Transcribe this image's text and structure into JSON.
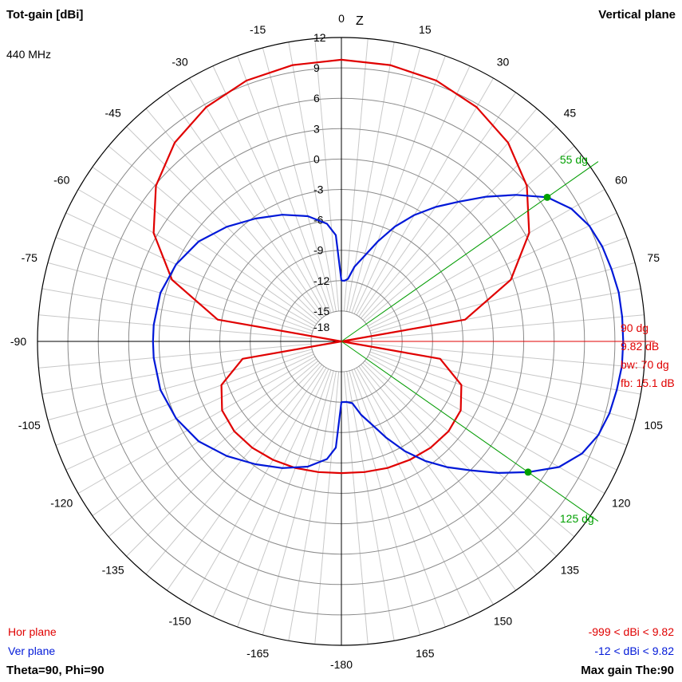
{
  "header": {
    "title_left": "Tot-gain [dBi]",
    "title_right": "Vertical plane",
    "frequency": "440 MHz",
    "z_axis_label": "Z"
  },
  "footer": {
    "hor_plane_label": "Hor plane",
    "ver_plane_label": "Ver plane",
    "theta_phi": "Theta=90, Phi=90",
    "hor_range": "-999 < dBi < 9.82",
    "ver_range": "-12 < dBi < 9.82",
    "max_gain": "Max gain The:90"
  },
  "markers": {
    "max_direction": "90 dg",
    "max_gain": "9.82 dB",
    "beamwidth": "bw: 70 dg",
    "front_back": "fb: 15.1 dB",
    "upper_half_power": "55 dg",
    "lower_half_power": "125 dg"
  },
  "colors": {
    "hor": "#e00000",
    "ver": "#0018d8",
    "marker": "#00a000",
    "grid": "#c8c8c8",
    "axis": "#000000"
  },
  "chart_data": {
    "type": "polar",
    "title": "Tot-gain [dBi]",
    "plane": "Vertical plane",
    "frequency": "440 MHz",
    "r_range": [
      -18,
      12
    ],
    "r_ticks": [
      "12",
      "9",
      "6",
      "3",
      "0",
      "-3",
      "-6",
      "-9",
      "-12",
      "-15",
      "-18"
    ],
    "angle_ticks": [
      {
        "angle": 0,
        "label": "0"
      },
      {
        "angle": 15,
        "label": "15"
      },
      {
        "angle": 30,
        "label": "30"
      },
      {
        "angle": 45,
        "label": "45"
      },
      {
        "angle": 60,
        "label": "60"
      },
      {
        "angle": 75,
        "label": "75"
      },
      {
        "angle": 105,
        "label": "105"
      },
      {
        "angle": 120,
        "label": "120"
      },
      {
        "angle": 135,
        "label": "135"
      },
      {
        "angle": 150,
        "label": "150"
      },
      {
        "angle": 165,
        "label": "165"
      },
      {
        "angle": 180,
        "label": "-180"
      },
      {
        "angle": -165,
        "label": "-165"
      },
      {
        "angle": -150,
        "label": "-150"
      },
      {
        "angle": -135,
        "label": "-135"
      },
      {
        "angle": -120,
        "label": "-120"
      },
      {
        "angle": -105,
        "label": "-105"
      },
      {
        "angle": -90,
        "label": "-90"
      },
      {
        "angle": -75,
        "label": "-75"
      },
      {
        "angle": -60,
        "label": "-60"
      },
      {
        "angle": -45,
        "label": "-45"
      },
      {
        "angle": -30,
        "label": "-30"
      },
      {
        "angle": -15,
        "label": "-15"
      }
    ],
    "half_power_angles": [
      55,
      125
    ],
    "series": [
      {
        "name": "Hor plane",
        "color": "#e00000",
        "points": [
          [
            0,
            9.8
          ],
          [
            10,
            9.7
          ],
          [
            20,
            9.4
          ],
          [
            30,
            8.7
          ],
          [
            40,
            7.6
          ],
          [
            50,
            5.9
          ],
          [
            60,
            3.4
          ],
          [
            70,
            -0.2
          ],
          [
            80,
            -5.6
          ],
          [
            90,
            -18
          ],
          [
            100,
            -8.1
          ],
          [
            110,
            -5.4
          ],
          [
            120,
            -4.4
          ],
          [
            130,
            -4.2
          ],
          [
            140,
            -4.3
          ],
          [
            150,
            -4.5
          ],
          [
            160,
            -4.7
          ],
          [
            170,
            -4.9
          ],
          [
            180,
            -5.0
          ],
          [
            190,
            -4.9
          ],
          [
            200,
            -4.7
          ],
          [
            210,
            -4.5
          ],
          [
            220,
            -4.3
          ],
          [
            230,
            -4.2
          ],
          [
            240,
            -4.4
          ],
          [
            250,
            -5.4
          ],
          [
            260,
            -8.1
          ],
          [
            270,
            -18
          ],
          [
            280,
            -5.6
          ],
          [
            290,
            -0.2
          ],
          [
            300,
            3.4
          ],
          [
            310,
            5.9
          ],
          [
            320,
            7.6
          ],
          [
            330,
            8.7
          ],
          [
            340,
            9.4
          ],
          [
            350,
            9.7
          ],
          [
            360,
            9.8
          ]
        ]
      },
      {
        "name": "Ver plane",
        "color": "#0018d8",
        "points": [
          [
            0,
            -12
          ],
          [
            3,
            -12
          ],
          [
            6,
            -11.8
          ],
          [
            10,
            -10.5
          ],
          [
            15,
            -9.3
          ],
          [
            20,
            -7.5
          ],
          [
            25,
            -5.5
          ],
          [
            30,
            -3.6
          ],
          [
            35,
            -1.8
          ],
          [
            40,
            0
          ],
          [
            45,
            2.2
          ],
          [
            50,
            4.5
          ],
          [
            55,
            6.8
          ],
          [
            60,
            8.2
          ],
          [
            65,
            9.0
          ],
          [
            70,
            9.4
          ],
          [
            75,
            9.6
          ],
          [
            80,
            9.8
          ],
          [
            85,
            9.82
          ],
          [
            90,
            9.82
          ],
          [
            95,
            9.8
          ],
          [
            100,
            9.6
          ],
          [
            105,
            9.4
          ],
          [
            110,
            9.0
          ],
          [
            115,
            8.2
          ],
          [
            120,
            6.8
          ],
          [
            125,
            4.5
          ],
          [
            130,
            2.2
          ],
          [
            135,
            0
          ],
          [
            140,
            -1.8
          ],
          [
            145,
            -3.6
          ],
          [
            150,
            -5.5
          ],
          [
            155,
            -7.5
          ],
          [
            160,
            -9.3
          ],
          [
            165,
            -10.5
          ],
          [
            170,
            -11.8
          ],
          [
            175,
            -12
          ],
          [
            180,
            -12
          ],
          [
            183,
            -7.5
          ],
          [
            187,
            -6.3
          ],
          [
            195,
            -5.2
          ],
          [
            205,
            -4.2
          ],
          [
            215,
            -3.2
          ],
          [
            225,
            -2.0
          ],
          [
            235,
            -0.8
          ],
          [
            245,
            0.0
          ],
          [
            255,
            0.5
          ],
          [
            265,
            0.6
          ],
          [
            270,
            0.6
          ],
          [
            275,
            0.6
          ],
          [
            285,
            0.5
          ],
          [
            295,
            0.0
          ],
          [
            305,
            -0.8
          ],
          [
            315,
            -2.0
          ],
          [
            325,
            -3.2
          ],
          [
            335,
            -4.2
          ],
          [
            345,
            -5.2
          ],
          [
            353,
            -6.3
          ],
          [
            357,
            -7.5
          ],
          [
            360,
            -12
          ]
        ]
      }
    ]
  }
}
